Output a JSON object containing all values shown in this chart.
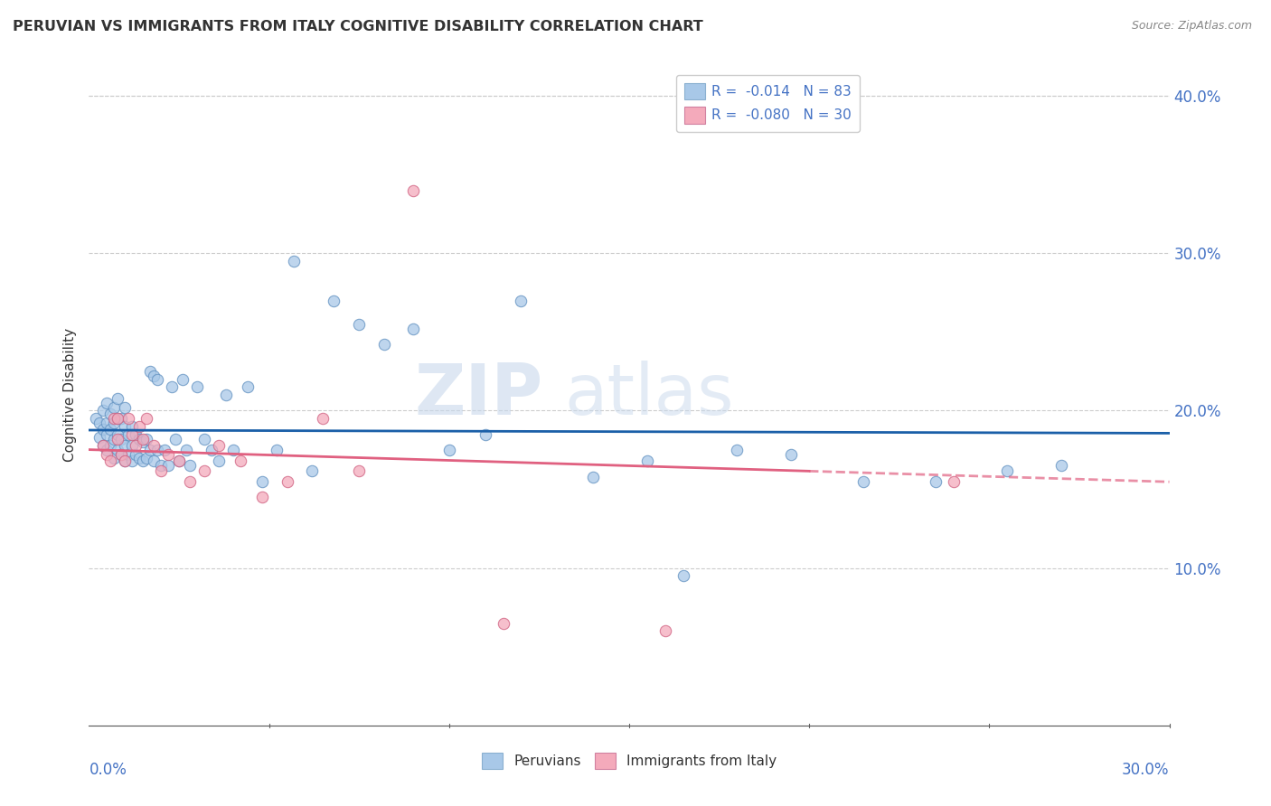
{
  "title": "PERUVIAN VS IMMIGRANTS FROM ITALY COGNITIVE DISABILITY CORRELATION CHART",
  "source": "Source: ZipAtlas.com",
  "ylabel": "Cognitive Disability",
  "xmin": 0.0,
  "xmax": 0.3,
  "ymin": 0.0,
  "ymax": 0.42,
  "yticks": [
    0.1,
    0.2,
    0.3,
    0.4
  ],
  "ytick_labels": [
    "10.0%",
    "20.0%",
    "30.0%",
    "40.0%"
  ],
  "blue_r": -0.014,
  "blue_n": 83,
  "pink_r": -0.08,
  "pink_n": 30,
  "blue_color": "#a8c8e8",
  "pink_color": "#f4aabb",
  "blue_line_color": "#1a5fa8",
  "pink_line_color": "#e06080",
  "blue_scatter_x": [
    0.002,
    0.003,
    0.003,
    0.004,
    0.004,
    0.004,
    0.005,
    0.005,
    0.005,
    0.005,
    0.006,
    0.006,
    0.006,
    0.007,
    0.007,
    0.007,
    0.007,
    0.008,
    0.008,
    0.008,
    0.008,
    0.009,
    0.009,
    0.009,
    0.01,
    0.01,
    0.01,
    0.01,
    0.011,
    0.011,
    0.012,
    0.012,
    0.012,
    0.013,
    0.013,
    0.014,
    0.014,
    0.015,
    0.015,
    0.016,
    0.016,
    0.017,
    0.017,
    0.018,
    0.018,
    0.019,
    0.019,
    0.02,
    0.021,
    0.022,
    0.023,
    0.024,
    0.025,
    0.026,
    0.027,
    0.028,
    0.03,
    0.032,
    0.034,
    0.036,
    0.038,
    0.04,
    0.044,
    0.048,
    0.052,
    0.057,
    0.062,
    0.068,
    0.075,
    0.082,
    0.09,
    0.1,
    0.11,
    0.12,
    0.14,
    0.155,
    0.165,
    0.18,
    0.195,
    0.215,
    0.235,
    0.255,
    0.27
  ],
  "blue_scatter_y": [
    0.195,
    0.183,
    0.192,
    0.178,
    0.188,
    0.2,
    0.175,
    0.185,
    0.192,
    0.205,
    0.178,
    0.188,
    0.198,
    0.17,
    0.182,
    0.192,
    0.202,
    0.175,
    0.185,
    0.195,
    0.208,
    0.172,
    0.182,
    0.195,
    0.168,
    0.178,
    0.19,
    0.202,
    0.172,
    0.185,
    0.168,
    0.178,
    0.19,
    0.172,
    0.185,
    0.17,
    0.182,
    0.168,
    0.18,
    0.17,
    0.182,
    0.225,
    0.175,
    0.222,
    0.168,
    0.22,
    0.175,
    0.165,
    0.175,
    0.165,
    0.215,
    0.182,
    0.168,
    0.22,
    0.175,
    0.165,
    0.215,
    0.182,
    0.175,
    0.168,
    0.21,
    0.175,
    0.215,
    0.155,
    0.175,
    0.295,
    0.162,
    0.27,
    0.255,
    0.242,
    0.252,
    0.175,
    0.185,
    0.27,
    0.158,
    0.168,
    0.095,
    0.175,
    0.172,
    0.155,
    0.155,
    0.162,
    0.165
  ],
  "pink_scatter_x": [
    0.004,
    0.005,
    0.006,
    0.007,
    0.008,
    0.008,
    0.009,
    0.01,
    0.011,
    0.012,
    0.013,
    0.014,
    0.015,
    0.016,
    0.018,
    0.02,
    0.022,
    0.025,
    0.028,
    0.032,
    0.036,
    0.042,
    0.048,
    0.055,
    0.065,
    0.075,
    0.09,
    0.115,
    0.16,
    0.24
  ],
  "pink_scatter_y": [
    0.178,
    0.172,
    0.168,
    0.195,
    0.182,
    0.195,
    0.172,
    0.168,
    0.195,
    0.185,
    0.178,
    0.19,
    0.182,
    0.195,
    0.178,
    0.162,
    0.172,
    0.168,
    0.155,
    0.162,
    0.178,
    0.168,
    0.145,
    0.155,
    0.195,
    0.162,
    0.34,
    0.065,
    0.06,
    0.155
  ]
}
